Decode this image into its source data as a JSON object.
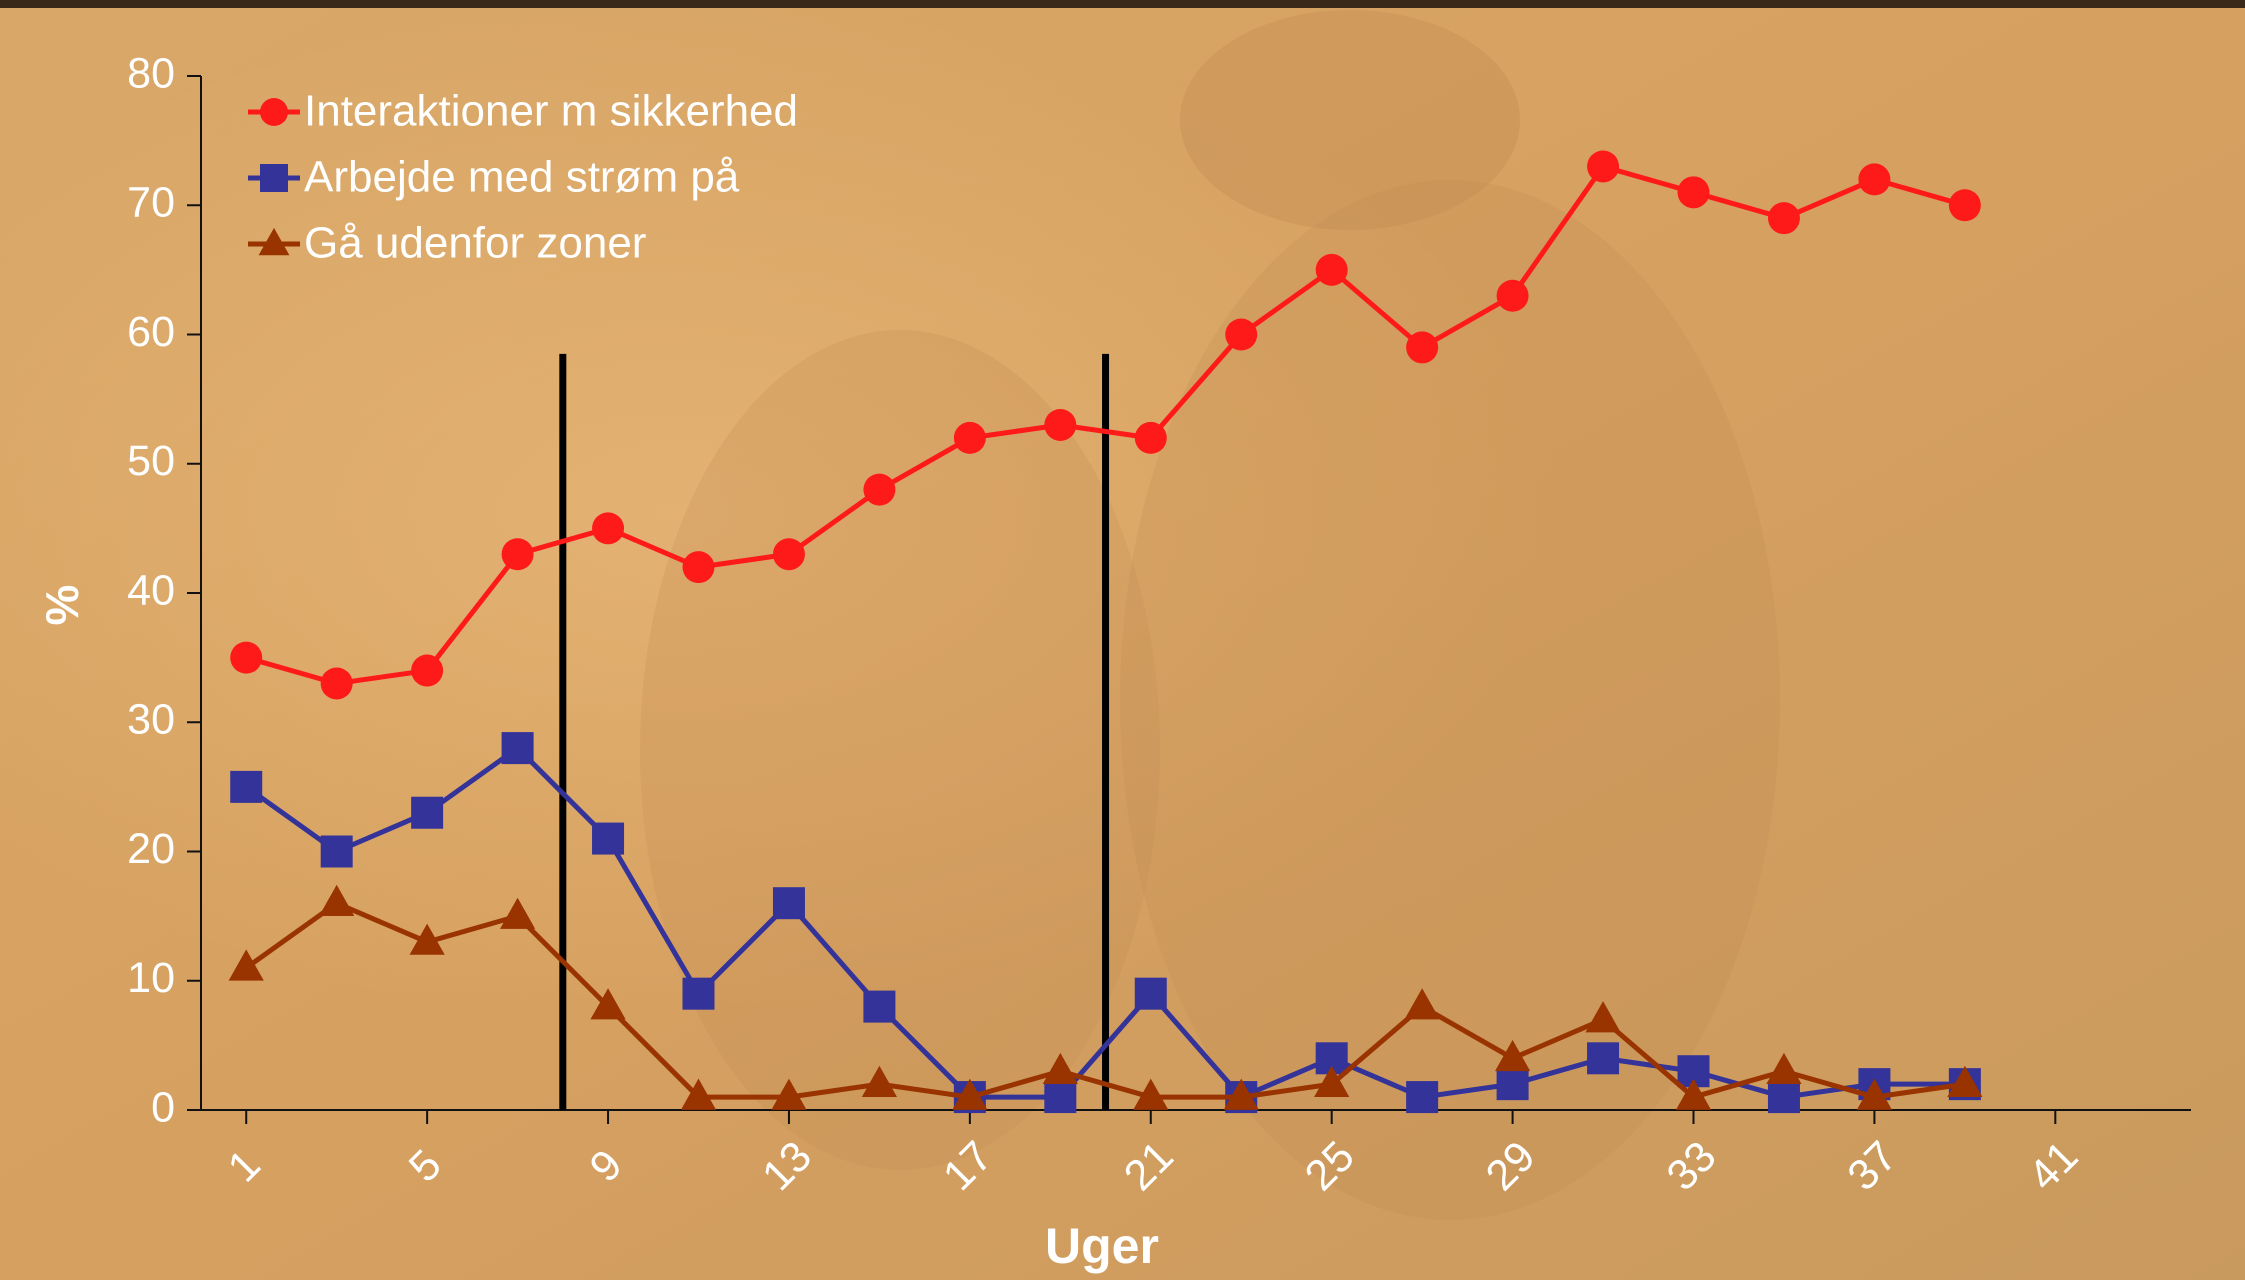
{
  "chart_data": {
    "type": "line",
    "x_label": "Uger",
    "y_label": "%",
    "x": [
      1,
      3,
      5,
      7,
      9,
      11,
      13,
      15,
      17,
      19,
      21,
      23,
      25,
      27,
      29,
      31,
      33,
      35,
      37,
      39
    ],
    "series": [
      {
        "name": "Interaktioner m sikkerhed",
        "color": "#ff1a1a",
        "marker": "circle",
        "values": [
          35,
          33,
          34,
          43,
          45,
          42,
          43,
          48,
          52,
          53,
          52,
          60,
          65,
          59,
          63,
          73,
          71,
          69,
          72,
          70
        ]
      },
      {
        "name": "Arbejde med strøm på",
        "color": "#333399",
        "marker": "square",
        "values": [
          25,
          20,
          23,
          28,
          21,
          9,
          16,
          8,
          1,
          1,
          9,
          1,
          4,
          1,
          2,
          4,
          3,
          1,
          2,
          2
        ]
      },
      {
        "name": "Gå udenfor zoner",
        "color": "#993300",
        "marker": "triangle",
        "values": [
          11,
          16,
          13,
          15,
          8,
          1,
          1,
          2,
          1,
          3,
          1,
          1,
          2,
          8,
          4,
          7,
          1,
          3,
          1,
          2
        ]
      }
    ],
    "xlim": [
      0,
      44
    ],
    "xticks": [
      1,
      5,
      9,
      13,
      17,
      21,
      25,
      29,
      33,
      37,
      41
    ],
    "ylim": [
      0,
      80
    ],
    "yticks": [
      0,
      10,
      20,
      30,
      40,
      50,
      60,
      70,
      80
    ],
    "reference_lines": {
      "x": [
        8,
        20
      ],
      "top": 58.5,
      "color": "#000000"
    },
    "legend": "top-left"
  }
}
